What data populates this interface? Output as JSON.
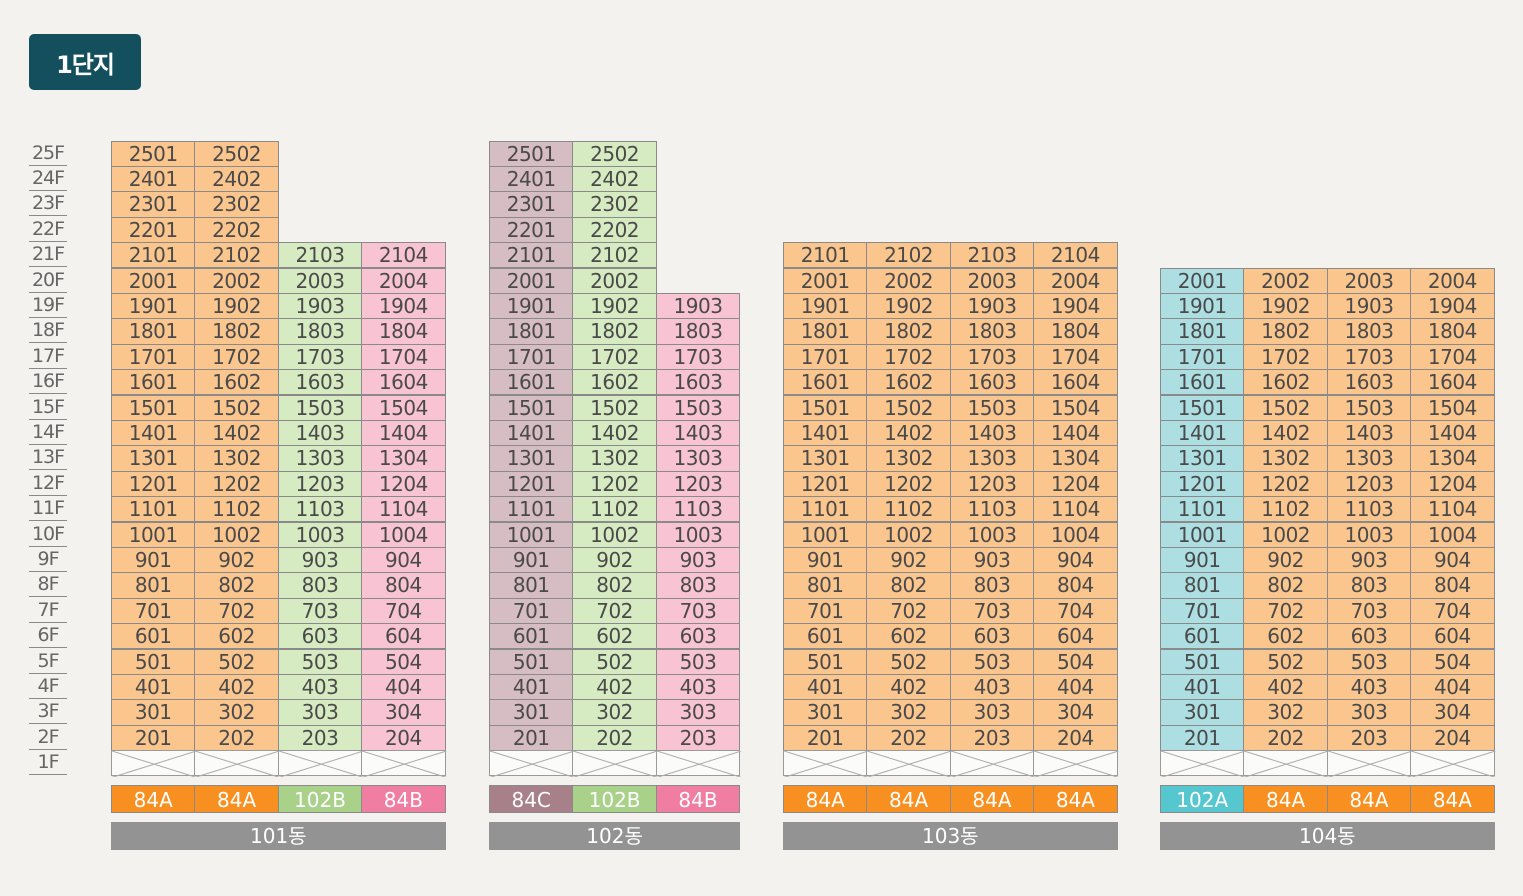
{
  "complex_label": "1단지",
  "floors": [
    "25F",
    "24F",
    "23F",
    "22F",
    "21F",
    "20F",
    "19F",
    "18F",
    "17F",
    "16F",
    "15F",
    "14F",
    "13F",
    "12F",
    "11F",
    "10F",
    "9F",
    "8F",
    "7F",
    "6F",
    "5F",
    "4F",
    "3F",
    "2F",
    "1F"
  ],
  "type_colors": {
    "84A": {
      "cell": "#fbc68e",
      "tag": "#f79021"
    },
    "102B": {
      "cell": "#d6ebc1",
      "tag": "#a9d18a"
    },
    "84B": {
      "cell": "#f8c3d2",
      "tag": "#f07ea2"
    },
    "84C": {
      "cell": "#d6bcc3",
      "tag": "#a7808a"
    },
    "102A": {
      "cell": "#acdee2",
      "tag": "#56c6cf"
    }
  },
  "buildings": [
    {
      "name": "101동",
      "columns": [
        {
          "type": "84A",
          "line": "01",
          "top_floor": 25
        },
        {
          "type": "84A",
          "line": "02",
          "top_floor": 25
        },
        {
          "type": "102B",
          "line": "03",
          "top_floor": 21
        },
        {
          "type": "84B",
          "line": "04",
          "top_floor": 21
        }
      ]
    },
    {
      "name": "102동",
      "columns": [
        {
          "type": "84C",
          "line": "01",
          "top_floor": 25
        },
        {
          "type": "102B",
          "line": "02",
          "top_floor": 25
        },
        {
          "type": "84B",
          "line": "03",
          "top_floor": 19
        }
      ]
    },
    {
      "name": "103동",
      "columns": [
        {
          "type": "84A",
          "line": "01",
          "top_floor": 21
        },
        {
          "type": "84A",
          "line": "02",
          "top_floor": 21
        },
        {
          "type": "84A",
          "line": "03",
          "top_floor": 21
        },
        {
          "type": "84A",
          "line": "04",
          "top_floor": 21
        }
      ]
    },
    {
      "name": "104동",
      "columns": [
        {
          "type": "102A",
          "line": "01",
          "top_floor": 20
        },
        {
          "type": "84A",
          "line": "02",
          "top_floor": 20
        },
        {
          "type": "84A",
          "line": "03",
          "top_floor": 20
        },
        {
          "type": "84A",
          "line": "04",
          "top_floor": 20
        }
      ]
    }
  ]
}
